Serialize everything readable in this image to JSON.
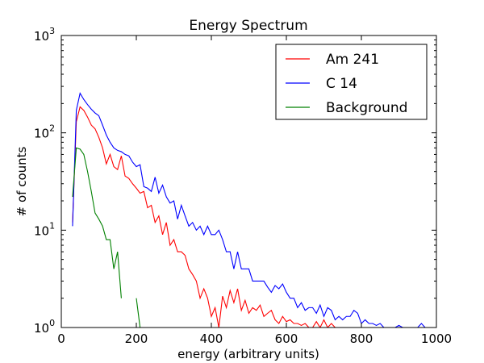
{
  "chart_data": {
    "type": "line",
    "title": "Energy Spectrum",
    "xlabel": "energy (arbitrary units)",
    "ylabel": "# of counts",
    "xlim": [
      0,
      1000
    ],
    "ylim": [
      1,
      1000
    ],
    "y_scale": "log",
    "grid": false,
    "legend_position": "top-right",
    "x_ticks": [
      0,
      200,
      400,
      600,
      800,
      1000
    ],
    "x_tick_labels": [
      "0",
      "200",
      "400",
      "600",
      "800",
      "1000"
    ],
    "y_ticks": [
      1,
      10,
      100,
      1000
    ],
    "y_tick_labels": [
      {
        "base": "10",
        "exp": "0"
      },
      {
        "base": "10",
        "exp": "1"
      },
      {
        "base": "10",
        "exp": "2"
      },
      {
        "base": "10",
        "exp": "3"
      }
    ],
    "series": [
      {
        "name": "Am 241",
        "color": "#ff0000",
        "x": [
          30,
          40,
          50,
          60,
          70,
          80,
          90,
          100,
          110,
          120,
          130,
          140,
          150,
          160,
          170,
          180,
          190,
          200,
          210,
          220,
          230,
          240,
          250,
          260,
          270,
          280,
          290,
          300,
          310,
          320,
          330,
          340,
          350,
          360,
          370,
          380,
          390,
          400,
          410,
          420,
          430,
          440,
          450,
          460,
          470,
          480,
          490,
          500,
          510,
          520,
          530,
          540,
          550,
          560,
          570,
          580,
          590,
          600,
          610,
          620,
          630,
          640,
          650,
          660,
          670,
          680,
          690,
          700,
          710,
          720,
          730
        ],
        "y": [
          12,
          130,
          185,
          170,
          145,
          120,
          110,
          90,
          70,
          48,
          60,
          45,
          42,
          58,
          36,
          34,
          30,
          27,
          24,
          25,
          17,
          18,
          12,
          14,
          9,
          12,
          7,
          8,
          6,
          6,
          5.5,
          4,
          3.5,
          3,
          2,
          2.5,
          2,
          1.3,
          1.6,
          1,
          2.1,
          1.6,
          2.4,
          1.8,
          2.5,
          1.5,
          1.9,
          1.4,
          1.6,
          1.5,
          1.7,
          1.3,
          1.4,
          1.5,
          1.2,
          1.1,
          1.3,
          1.15,
          1.2,
          1.1,
          1.1,
          1.05,
          1.1,
          1,
          1,
          1.15,
          1,
          1.2,
          1,
          1.1,
          1
        ]
      },
      {
        "name": "C 14",
        "color": "#0000ff",
        "x": [
          30,
          40,
          50,
          60,
          70,
          80,
          90,
          100,
          110,
          120,
          130,
          140,
          150,
          160,
          170,
          180,
          190,
          200,
          210,
          220,
          230,
          240,
          250,
          260,
          270,
          280,
          290,
          300,
          310,
          320,
          330,
          340,
          350,
          360,
          370,
          380,
          390,
          400,
          410,
          420,
          430,
          440,
          450,
          460,
          470,
          480,
          490,
          500,
          510,
          520,
          530,
          540,
          550,
          560,
          570,
          580,
          590,
          600,
          610,
          620,
          630,
          640,
          650,
          660,
          670,
          680,
          690,
          700,
          710,
          720,
          730,
          740,
          750,
          760,
          770,
          780,
          790,
          800,
          810,
          820,
          830,
          840,
          850,
          860,
          870,
          880,
          890,
          900,
          910,
          920,
          930,
          940,
          950,
          960,
          970
        ],
        "y": [
          11,
          170,
          255,
          220,
          195,
          175,
          160,
          150,
          120,
          95,
          80,
          70,
          66,
          64,
          60,
          58,
          50,
          45,
          47,
          28,
          27,
          25,
          35,
          24,
          29,
          22,
          19,
          20,
          13,
          18,
          14,
          11,
          12,
          10,
          11,
          9,
          11,
          9,
          9,
          10,
          8,
          6,
          6,
          4,
          6,
          4,
          4,
          4,
          3,
          3,
          3,
          3,
          2.6,
          2.3,
          2.7,
          2.5,
          2.8,
          2.3,
          2,
          2,
          1.6,
          1.8,
          1.5,
          1.6,
          1.6,
          1.4,
          1.7,
          1.3,
          1.6,
          1.5,
          1.2,
          1.3,
          1.2,
          1.3,
          1.3,
          1.5,
          1.4,
          1.1,
          1.2,
          1.1,
          1.1,
          1.05,
          1.1,
          1,
          1,
          1,
          1,
          1.05,
          1,
          1,
          1,
          1,
          1,
          1.1,
          1
        ]
      },
      {
        "name": "Background",
        "color": "#008000",
        "x": [
          30,
          40,
          50,
          60,
          70,
          80,
          90,
          100,
          110,
          120,
          130,
          140,
          150,
          160
        ],
        "y": [
          22,
          70,
          68,
          60,
          40,
          25,
          15,
          13,
          11,
          8,
          8,
          4,
          6,
          2
        ]
      },
      {
        "name": "Background",
        "color": "#008000",
        "x": [
          200,
          210
        ],
        "y": [
          2,
          1
        ]
      }
    ]
  }
}
